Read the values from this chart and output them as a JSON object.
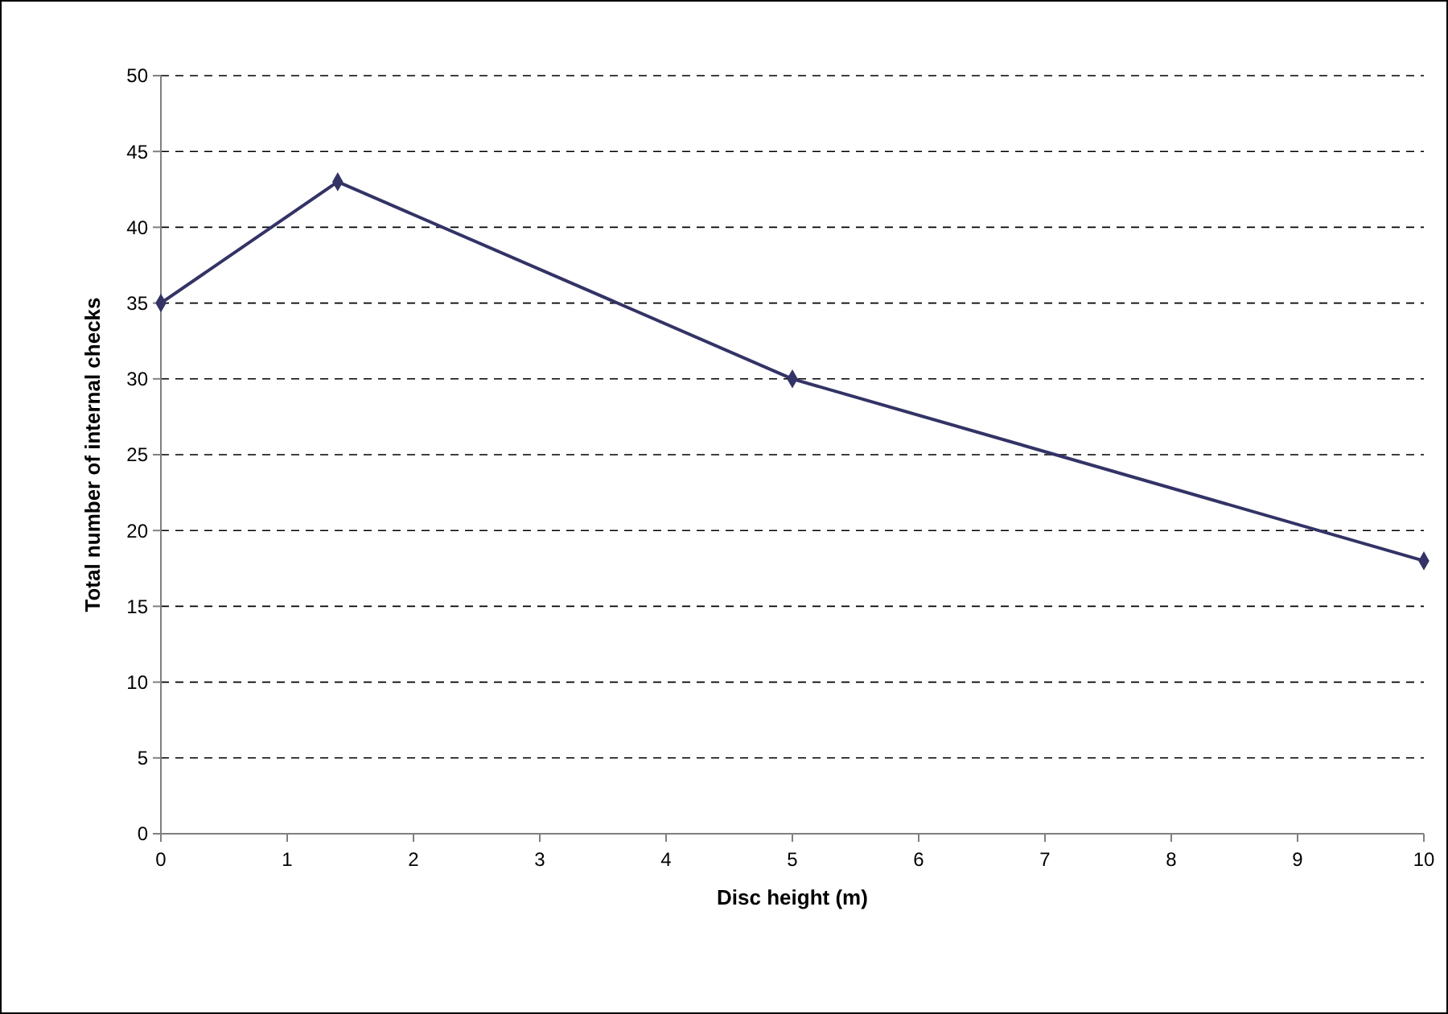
{
  "chart_data": {
    "type": "line",
    "xlabel": "Disc height (m)",
    "ylabel": "Total number of internal checks",
    "x": [
      0,
      1.4,
      5,
      10
    ],
    "series": [
      {
        "color": "#333366",
        "values": [
          35,
          43,
          30,
          18
        ]
      }
    ],
    "xlim": [
      0,
      10
    ],
    "xticks": [
      0,
      1,
      2,
      3,
      4,
      5,
      6,
      7,
      8,
      9,
      10
    ],
    "ylim": [
      0,
      50
    ],
    "yticks": [
      0,
      5,
      10,
      15,
      20,
      25,
      30,
      35,
      40,
      45,
      50
    ],
    "grid": "y",
    "marker": "diamond",
    "line_style": "solid"
  }
}
